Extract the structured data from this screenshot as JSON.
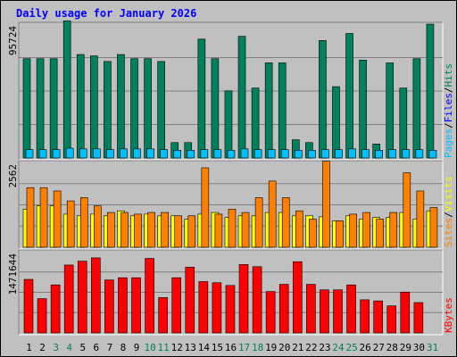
{
  "chart_data": {
    "type": "bar",
    "title": "Daily usage for January 2026",
    "x": [
      "1",
      "2",
      "3",
      "4",
      "5",
      "6",
      "7",
      "8",
      "9",
      "10",
      "11",
      "12",
      "13",
      "14",
      "15",
      "16",
      "17",
      "18",
      "19",
      "20",
      "21",
      "22",
      "23",
      "24",
      "25",
      "26",
      "27",
      "28",
      "29",
      "30",
      "31"
    ],
    "weekend_days": [
      "3",
      "4",
      "10",
      "11",
      "17",
      "18",
      "24",
      "25",
      "31"
    ],
    "panels": [
      {
        "max_label": "95724",
        "ymax": 95724,
        "series": [
          {
            "name": "Hits",
            "color": "#00805c",
            "values": [
              71000,
              71000,
              71000,
              98000,
              74000,
              73000,
              69000,
              74000,
              71000,
              71000,
              69000,
              11000,
              11000,
              85000,
              71000,
              48000,
              87000,
              50000,
              68000,
              68000,
              13000,
              11000,
              84000,
              51000,
              89000,
              70000,
              10000,
              68000,
              50000,
              71000,
              95724
            ]
          },
          {
            "name": "Files",
            "color": "#0000ff",
            "values": [],
            "note": ""
          },
          {
            "name": "Pages",
            "color": "#00c0ff",
            "values": [
              6000,
              6000,
              6000,
              7000,
              6500,
              6500,
              6000,
              6500,
              6500,
              6500,
              6000,
              5500,
              5500,
              6000,
              6000,
              5500,
              6500,
              6000,
              6000,
              6000,
              5500,
              5500,
              6000,
              6000,
              6500,
              6000,
              5500,
              6000,
              6000,
              6000,
              5500
            ]
          }
        ],
        "label_colors": [
          {
            "text": "Pages",
            "color": "#00c0ff"
          },
          {
            "text": "/",
            "color": "#000000"
          },
          {
            "text": "Files",
            "color": "#0000ff"
          },
          {
            "text": "/",
            "color": "#000000"
          },
          {
            "text": "Hits",
            "color": "#00805c"
          }
        ]
      },
      {
        "max_label": "2562",
        "ymax": 2562,
        "series": [
          {
            "name": "Visits",
            "color": "#ffff00",
            "values": [
              1150,
              1250,
              1250,
              1000,
              950,
              1000,
              950,
              1100,
              950,
              1000,
              950,
              950,
              850,
              1000,
              1050,
              900,
              950,
              950,
              1050,
              1050,
              950,
              950,
              920,
              800,
              950,
              850,
              900,
              900,
              1050,
              850,
              1100
            ]
          },
          {
            "name": "Sites",
            "color": "#ff8000",
            "values": [
              1800,
              1800,
              1700,
              1400,
              1500,
              1250,
              1050,
              1050,
              1000,
              1050,
              1050,
              950,
              950,
              2400,
              1000,
              1150,
              1050,
              1500,
              2000,
              1500,
              1100,
              850,
              2600,
              800,
              1000,
              1050,
              850,
              1050,
              2250,
              1700,
              1200
            ]
          }
        ],
        "label_colors": [
          {
            "text": "Sites",
            "color": "#ff8000"
          },
          {
            "text": "/",
            "color": "#000000"
          },
          {
            "text": "Visits",
            "color": "#ffff00"
          }
        ]
      },
      {
        "max_label": "1471644",
        "ymax": 1471644,
        "series": [
          {
            "name": "KBytes",
            "color": "#ff0000",
            "values": [
              970000,
              620000,
              870000,
              1230000,
              1300000,
              1360000,
              960000,
              1000000,
              1000000,
              1350000,
              640000,
              1000000,
              1190000,
              930000,
              910000,
              860000,
              1240000,
              1200000,
              750000,
              880000,
              1290000,
              880000,
              780000,
              780000,
              870000,
              600000,
              580000,
              490000,
              740000,
              550000,
              0
            ]
          }
        ],
        "label_colors": [
          {
            "text": "KBytes",
            "color": "#ff0000"
          }
        ]
      }
    ]
  }
}
